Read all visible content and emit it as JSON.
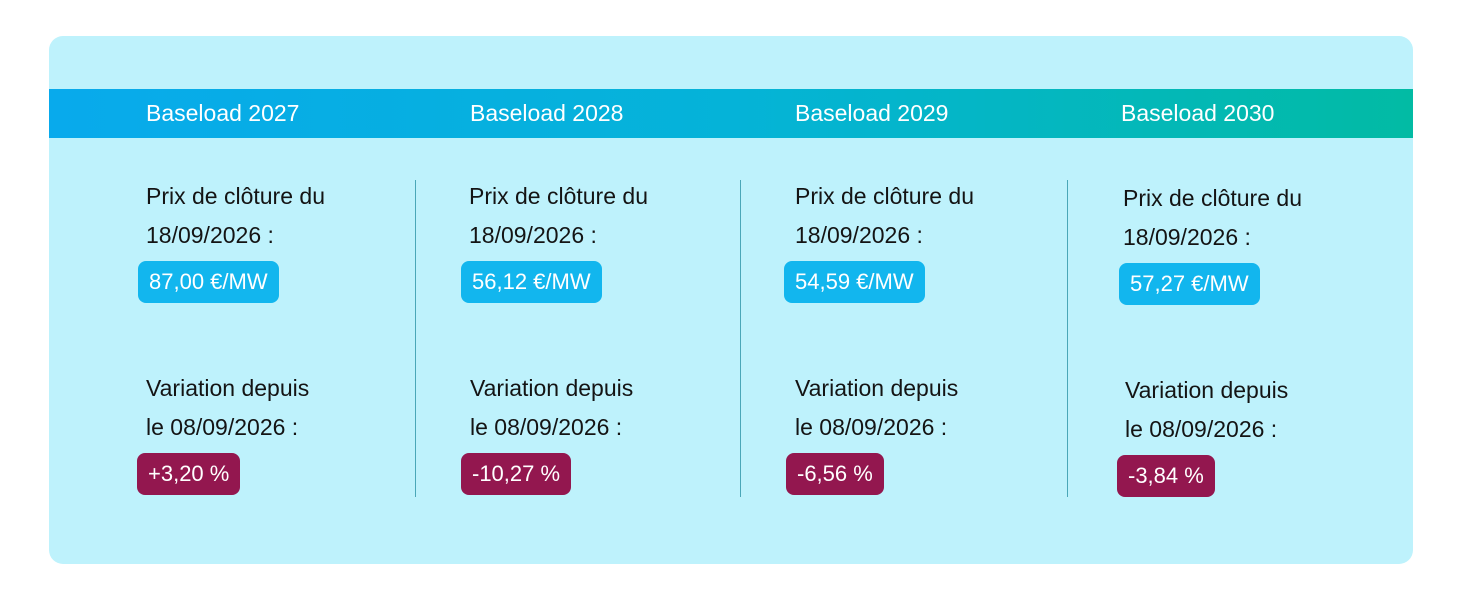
{
  "columns": [
    {
      "header": "Baseload 2027",
      "price_label_line1": "Prix de clôture du",
      "price_label_line2": "18/09/2026 :",
      "price_value": "87,00 €/MW",
      "variation_label_line1": "Variation depuis",
      "variation_label_line2": "le 08/09/2026 :",
      "variation_value": "+3,20 %"
    },
    {
      "header": "Baseload 2028",
      "price_label_line1": "Prix de clôture du",
      "price_label_line2": "18/09/2026 :",
      "price_value": "56,12 €/MW",
      "variation_label_line1": "Variation depuis",
      "variation_label_line2": "le 08/09/2026 :",
      "variation_value": "-10,27 %"
    },
    {
      "header": "Baseload 2029",
      "price_label_line1": "Prix de clôture du",
      "price_label_line2": "18/09/2026 :",
      "price_value": "54,59 €/MW",
      "variation_label_line1": "Variation depuis",
      "variation_label_line2": "le 08/09/2026 :",
      "variation_value": "-6,56 %"
    },
    {
      "header": "Baseload 2030",
      "price_label_line1": "Prix de clôture du",
      "price_label_line2": "18/09/2026 :",
      "price_value": "57,27 €/MW",
      "variation_label_line1": "Variation depuis",
      "variation_label_line2": "le 08/09/2026 :",
      "variation_value": "-3,84 %"
    }
  ],
  "colors": {
    "card_background": "#bef2fc",
    "header_gradient_start": "#08aaec",
    "header_gradient_end": "#02bba4",
    "price_badge": "#12b6ee",
    "variation_badge": "#93174f",
    "divider": "#4aa7b8"
  }
}
